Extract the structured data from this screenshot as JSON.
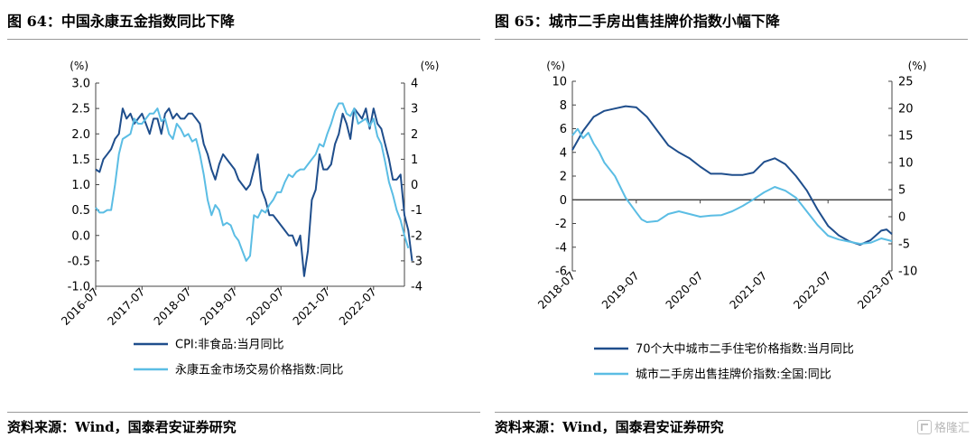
{
  "panels": [
    {
      "title": "图 64：中国永康五金指数同比下降",
      "source": "资料来源：Wind，国泰君安证券研究"
    },
    {
      "title": "图 65：城市二手房出售挂牌价指数小幅下降",
      "source": "资料来源：Wind，国泰君安证券研究"
    }
  ],
  "watermark": "格隆汇",
  "chart_data": [
    {
      "type": "line",
      "x_type": "date",
      "left_unit_label": "(%)",
      "right_unit_label": "(%)",
      "left_axis": {
        "min": -1.0,
        "max": 3.0,
        "ticks": [
          "3.0",
          "2.5",
          "2.0",
          "1.5",
          "1.0",
          "0.5",
          "0.0",
          "-0.5",
          "-1.0"
        ]
      },
      "right_axis": {
        "min": -4,
        "max": 4,
        "ticks": [
          "4",
          "3",
          "2",
          "1",
          "0",
          "-1",
          "-2",
          "-3",
          "-4"
        ]
      },
      "x_range": [
        "2016-07",
        "2023-03"
      ],
      "x_tick_labels": [
        "2016-07",
        "2017-07",
        "2018-07",
        "2019-07",
        "2020-07",
        "2021-07",
        "2022-07"
      ],
      "legend_position": "bottom",
      "grid": false,
      "series": [
        {
          "name": "CPI:非食品:当月同比",
          "axis": "left",
          "color": "#1f4e8c",
          "points": [
            [
              "2016-07",
              1.3
            ],
            [
              "2016-08",
              1.25
            ],
            [
              "2016-09",
              1.5
            ],
            [
              "2016-10",
              1.6
            ],
            [
              "2016-11",
              1.7
            ],
            [
              "2016-12",
              1.9
            ],
            [
              "2017-01",
              2.0
            ],
            [
              "2017-02",
              2.5
            ],
            [
              "2017-03",
              2.3
            ],
            [
              "2017-04",
              2.4
            ],
            [
              "2017-05",
              2.2
            ],
            [
              "2017-06",
              2.3
            ],
            [
              "2017-07",
              2.4
            ],
            [
              "2017-08",
              2.2
            ],
            [
              "2017-09",
              2.0
            ],
            [
              "2017-10",
              2.3
            ],
            [
              "2017-11",
              2.3
            ],
            [
              "2017-12",
              2.0
            ],
            [
              "2018-01",
              2.4
            ],
            [
              "2018-02",
              2.5
            ],
            [
              "2018-03",
              2.3
            ],
            [
              "2018-04",
              2.4
            ],
            [
              "2018-05",
              2.3
            ],
            [
              "2018-06",
              2.3
            ],
            [
              "2018-07",
              2.4
            ],
            [
              "2018-08",
              2.4
            ],
            [
              "2018-09",
              2.3
            ],
            [
              "2018-10",
              2.2
            ],
            [
              "2018-11",
              1.8
            ],
            [
              "2018-12",
              1.6
            ],
            [
              "2019-01",
              1.3
            ],
            [
              "2019-02",
              1.1
            ],
            [
              "2019-03",
              1.4
            ],
            [
              "2019-04",
              1.6
            ],
            [
              "2019-05",
              1.5
            ],
            [
              "2019-06",
              1.4
            ],
            [
              "2019-07",
              1.3
            ],
            [
              "2019-08",
              1.1
            ],
            [
              "2019-09",
              1.0
            ],
            [
              "2019-10",
              0.9
            ],
            [
              "2019-11",
              1.0
            ],
            [
              "2019-12",
              1.3
            ],
            [
              "2020-01",
              1.6
            ],
            [
              "2020-02",
              0.9
            ],
            [
              "2020-03",
              0.7
            ],
            [
              "2020-04",
              0.4
            ],
            [
              "2020-05",
              0.4
            ],
            [
              "2020-06",
              0.3
            ],
            [
              "2020-07",
              0.2
            ],
            [
              "2020-08",
              0.1
            ],
            [
              "2020-09",
              0.0
            ],
            [
              "2020-10",
              0.0
            ],
            [
              "2020-11",
              -0.2
            ],
            [
              "2020-12",
              0.0
            ],
            [
              "2021-01",
              -0.8
            ],
            [
              "2021-02",
              -0.3
            ],
            [
              "2021-03",
              0.7
            ],
            [
              "2021-04",
              0.9
            ],
            [
              "2021-05",
              1.6
            ],
            [
              "2021-06",
              1.3
            ],
            [
              "2021-07",
              1.3
            ],
            [
              "2021-08",
              1.4
            ],
            [
              "2021-09",
              1.8
            ],
            [
              "2021-10",
              2.0
            ],
            [
              "2021-11",
              2.4
            ],
            [
              "2021-12",
              2.2
            ],
            [
              "2022-01",
              1.9
            ],
            [
              "2022-02",
              2.5
            ],
            [
              "2022-03",
              2.4
            ],
            [
              "2022-04",
              2.3
            ],
            [
              "2022-05",
              2.5
            ],
            [
              "2022-06",
              2.1
            ],
            [
              "2022-07",
              2.5
            ],
            [
              "2022-08",
              2.2
            ],
            [
              "2022-09",
              2.1
            ],
            [
              "2022-10",
              1.8
            ],
            [
              "2022-11",
              1.5
            ],
            [
              "2022-12",
              1.1
            ],
            [
              "2023-01",
              1.1
            ],
            [
              "2023-02",
              1.2
            ],
            [
              "2023-03",
              0.4
            ],
            [
              "2023-04",
              0.1
            ],
            [
              "2023-05",
              -0.5
            ]
          ]
        },
        {
          "name": "永康五金市场交易价格指数:同比",
          "axis": "right",
          "color": "#5bbde4",
          "points": [
            [
              "2016-07",
              -0.9
            ],
            [
              "2016-08",
              -1.1
            ],
            [
              "2016-09",
              -1.1
            ],
            [
              "2016-10",
              -1.0
            ],
            [
              "2016-11",
              -1.0
            ],
            [
              "2016-12",
              0.0
            ],
            [
              "2017-01",
              1.2
            ],
            [
              "2017-02",
              1.8
            ],
            [
              "2017-03",
              1.9
            ],
            [
              "2017-04",
              2.0
            ],
            [
              "2017-05",
              2.6
            ],
            [
              "2017-06",
              2.4
            ],
            [
              "2017-07",
              2.4
            ],
            [
              "2017-08",
              2.6
            ],
            [
              "2017-09",
              2.8
            ],
            [
              "2017-10",
              2.8
            ],
            [
              "2017-11",
              3.0
            ],
            [
              "2017-12",
              2.5
            ],
            [
              "2018-01",
              2.6
            ],
            [
              "2018-02",
              2.0
            ],
            [
              "2018-03",
              1.8
            ],
            [
              "2018-04",
              2.4
            ],
            [
              "2018-05",
              2.2
            ],
            [
              "2018-06",
              1.9
            ],
            [
              "2018-07",
              2.0
            ],
            [
              "2018-08",
              1.7
            ],
            [
              "2018-09",
              1.8
            ],
            [
              "2018-10",
              1.2
            ],
            [
              "2018-11",
              0.4
            ],
            [
              "2018-12",
              -0.6
            ],
            [
              "2019-01",
              -1.2
            ],
            [
              "2019-02",
              -0.8
            ],
            [
              "2019-03",
              -1.0
            ],
            [
              "2019-04",
              -1.6
            ],
            [
              "2019-05",
              -1.5
            ],
            [
              "2019-06",
              -1.6
            ],
            [
              "2019-07",
              -2.0
            ],
            [
              "2019-08",
              -2.2
            ],
            [
              "2019-09",
              -2.6
            ],
            [
              "2019-10",
              -3.0
            ],
            [
              "2019-11",
              -2.8
            ],
            [
              "2019-12",
              -1.2
            ],
            [
              "2020-01",
              -1.3
            ],
            [
              "2020-02",
              -1.0
            ],
            [
              "2020-03",
              -1.1
            ],
            [
              "2020-04",
              -0.8
            ],
            [
              "2020-05",
              -0.6
            ],
            [
              "2020-06",
              -0.3
            ],
            [
              "2020-07",
              -0.3
            ],
            [
              "2020-08",
              0.1
            ],
            [
              "2020-09",
              0.4
            ],
            [
              "2020-10",
              0.3
            ],
            [
              "2020-11",
              0.5
            ],
            [
              "2020-12",
              0.6
            ],
            [
              "2021-01",
              0.6
            ],
            [
              "2021-02",
              0.8
            ],
            [
              "2021-03",
              1.0
            ],
            [
              "2021-04",
              1.2
            ],
            [
              "2021-05",
              1.6
            ],
            [
              "2021-06",
              1.5
            ],
            [
              "2021-07",
              2.0
            ],
            [
              "2021-08",
              2.4
            ],
            [
              "2021-09",
              2.9
            ],
            [
              "2021-10",
              3.2
            ],
            [
              "2021-11",
              3.2
            ],
            [
              "2021-12",
              2.8
            ],
            [
              "2022-01",
              2.7
            ],
            [
              "2022-02",
              3.0
            ],
            [
              "2022-03",
              2.4
            ],
            [
              "2022-04",
              2.5
            ],
            [
              "2022-05",
              2.6
            ],
            [
              "2022-06",
              2.3
            ],
            [
              "2022-07",
              2.6
            ],
            [
              "2022-08",
              1.9
            ],
            [
              "2022-09",
              1.6
            ],
            [
              "2022-10",
              0.9
            ],
            [
              "2022-11",
              0.1
            ],
            [
              "2022-12",
              -0.4
            ],
            [
              "2023-01",
              -1.0
            ],
            [
              "2023-02",
              -1.4
            ],
            [
              "2023-03",
              -2.0
            ],
            [
              "2023-04",
              -2.5
            ]
          ]
        }
      ]
    },
    {
      "type": "line",
      "x_type": "date",
      "left_unit_label": "(%)",
      "right_unit_label": "(%)",
      "left_axis": {
        "min": -6,
        "max": 10,
        "ticks": [
          "10",
          "8",
          "6",
          "4",
          "2",
          "0",
          "-2",
          "-4",
          "-6"
        ]
      },
      "right_axis": {
        "min": -10,
        "max": 25,
        "ticks": [
          "25",
          "20",
          "15",
          "10",
          "5",
          "0",
          "-5",
          "-10"
        ]
      },
      "x_range": [
        "2018-07",
        "2023-07"
      ],
      "x_tick_labels": [
        "2018-07",
        "2019-07",
        "2020-07",
        "2021-07",
        "2022-07",
        "2023-07"
      ],
      "zero_line": true,
      "legend_position": "bottom",
      "grid": false,
      "series": [
        {
          "name": "70个大中城市二手住宅价格指数:当月同比",
          "axis": "left",
          "color": "#1f4e8c",
          "points": [
            [
              "2018-07",
              4.2
            ],
            [
              "2018-09",
              5.8
            ],
            [
              "2018-11",
              7.0
            ],
            [
              "2019-01",
              7.5
            ],
            [
              "2019-03",
              7.7
            ],
            [
              "2019-05",
              7.9
            ],
            [
              "2019-07",
              7.8
            ],
            [
              "2019-09",
              7.0
            ],
            [
              "2019-11",
              5.8
            ],
            [
              "2020-01",
              4.6
            ],
            [
              "2020-03",
              4.0
            ],
            [
              "2020-05",
              3.5
            ],
            [
              "2020-07",
              2.8
            ],
            [
              "2020-09",
              2.2
            ],
            [
              "2020-11",
              2.2
            ],
            [
              "2021-01",
              2.1
            ],
            [
              "2021-03",
              2.1
            ],
            [
              "2021-05",
              2.3
            ],
            [
              "2021-07",
              3.2
            ],
            [
              "2021-09",
              3.5
            ],
            [
              "2021-11",
              3.0
            ],
            [
              "2022-01",
              2.0
            ],
            [
              "2022-03",
              0.8
            ],
            [
              "2022-05",
              -0.8
            ],
            [
              "2022-07",
              -2.2
            ],
            [
              "2022-09",
              -3.0
            ],
            [
              "2022-11",
              -3.5
            ],
            [
              "2023-01",
              -3.8
            ],
            [
              "2023-03",
              -3.4
            ],
            [
              "2023-05",
              -2.6
            ],
            [
              "2023-06",
              -2.5
            ],
            [
              "2023-07",
              -2.9
            ]
          ]
        },
        {
          "name": "城市二手房出售挂牌价指数:全国:同比",
          "axis": "right",
          "color": "#5bbde4",
          "points": [
            [
              "2018-07",
              15.0
            ],
            [
              "2018-08",
              16.2
            ],
            [
              "2018-09",
              14.5
            ],
            [
              "2018-10",
              15.5
            ],
            [
              "2018-11",
              13.5
            ],
            [
              "2018-12",
              12.0
            ],
            [
              "2019-01",
              10.0
            ],
            [
              "2019-03",
              7.5
            ],
            [
              "2019-05",
              3.5
            ],
            [
              "2019-07",
              0.8
            ],
            [
              "2019-08",
              -0.5
            ],
            [
              "2019-09",
              -1.0
            ],
            [
              "2019-11",
              -0.8
            ],
            [
              "2020-01",
              0.5
            ],
            [
              "2020-03",
              1.0
            ],
            [
              "2020-05",
              0.5
            ],
            [
              "2020-07",
              0.0
            ],
            [
              "2020-09",
              0.2
            ],
            [
              "2020-11",
              0.3
            ],
            [
              "2021-01",
              1.0
            ],
            [
              "2021-03",
              2.0
            ],
            [
              "2021-05",
              3.2
            ],
            [
              "2021-07",
              4.5
            ],
            [
              "2021-09",
              5.5
            ],
            [
              "2021-11",
              4.8
            ],
            [
              "2022-01",
              3.5
            ],
            [
              "2022-03",
              1.0
            ],
            [
              "2022-05",
              -1.5
            ],
            [
              "2022-07",
              -3.5
            ],
            [
              "2022-09",
              -4.2
            ],
            [
              "2022-11",
              -4.6
            ],
            [
              "2023-01",
              -5.0
            ],
            [
              "2023-03",
              -4.8
            ],
            [
              "2023-05",
              -4.0
            ],
            [
              "2023-07",
              -4.5
            ]
          ]
        }
      ]
    }
  ]
}
